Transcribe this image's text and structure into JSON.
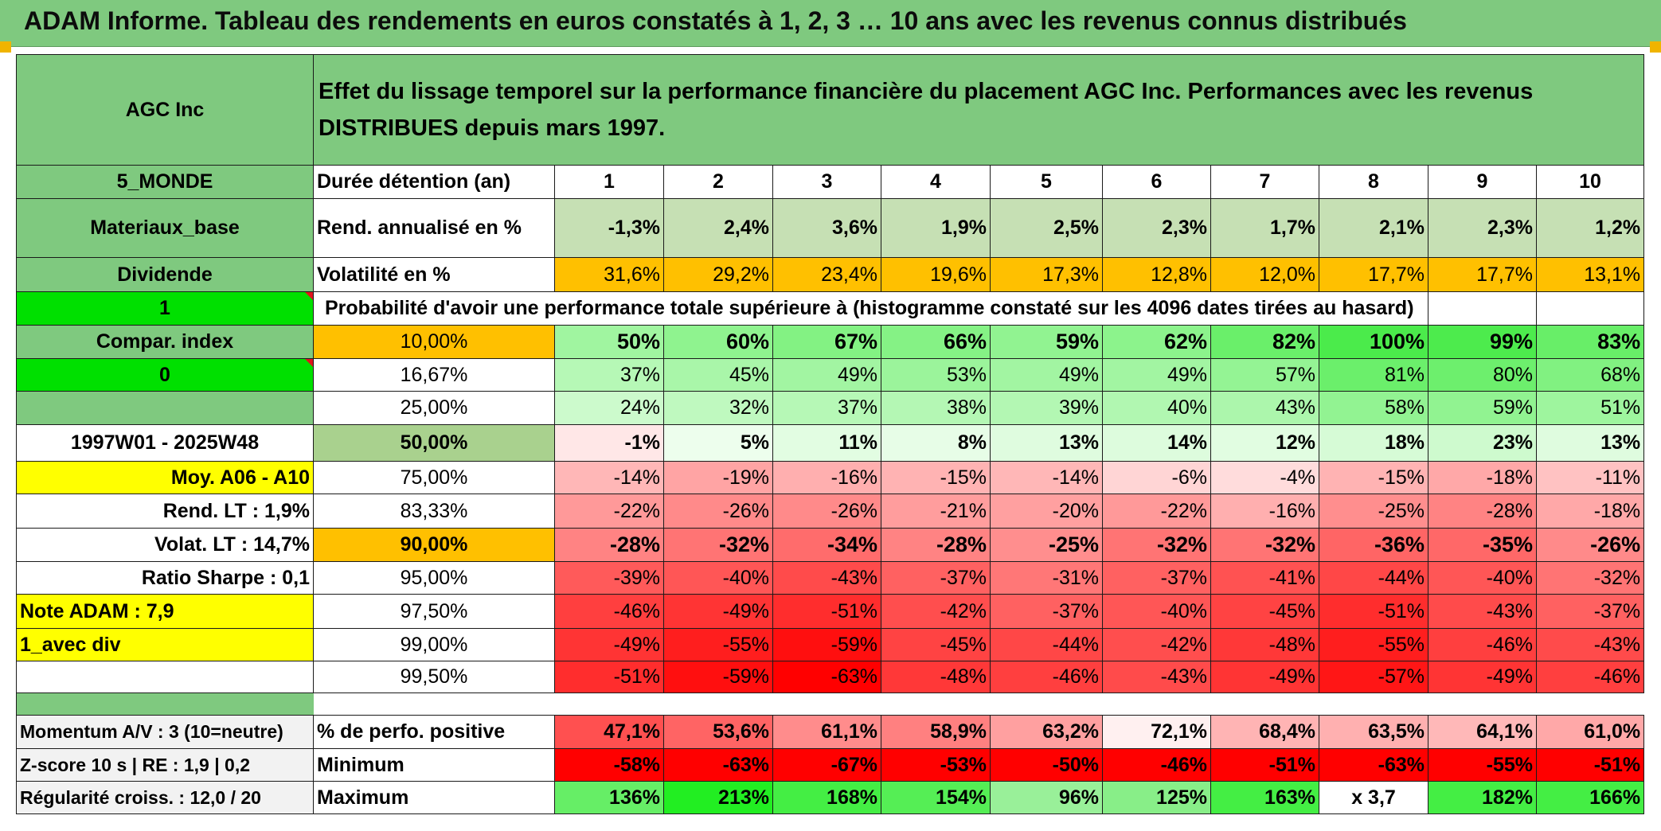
{
  "title": "ADAM Informe. Tableau des rendements en euros constatés à 1, 2, 3 … 10 ans avec les revenus connus distribués",
  "header": {
    "company": "AGC Inc",
    "description": "Effet du lissage temporel sur la performance financière du placement AGC Inc. Performances avec les revenus DISTRIBUES depuis mars 1997."
  },
  "left": {
    "region": "5_MONDE",
    "sector": "Materiaux_base",
    "dividend": "Dividende",
    "flag1": "1",
    "compar_index": "Compar. index",
    "flag0": "0",
    "period": "1997W01 - 2025W48",
    "moy": "Moy. A06 - A10",
    "rend_lt": "Rend. LT :   1,9%",
    "volat_lt": "Volat. LT :   14,7%",
    "sharpe": "Ratio Sharpe :   0,1",
    "note": "Note ADAM : 7,9",
    "avec_div": "1_avec div",
    "momentum": "Momentum A/V : 3 (10=neutre)",
    "zscore": "Z-score 10 s | RE : 1,9 | 0,2",
    "regularite": "Régularité croiss. : 12,0 / 20"
  },
  "rows": {
    "duree_label": "Durée détention (an)",
    "years": [
      "1",
      "2",
      "3",
      "4",
      "5",
      "6",
      "7",
      "8",
      "9",
      "10"
    ],
    "rend_label": "Rend. annualisé en %",
    "rend": [
      "-1,3%",
      "2,4%",
      "3,6%",
      "1,9%",
      "2,5%",
      "2,3%",
      "1,7%",
      "2,1%",
      "2,3%",
      "1,2%"
    ],
    "vol_label": "Volatilité en %",
    "vol": [
      "31,6%",
      "29,2%",
      "23,4%",
      "19,6%",
      "17,3%",
      "12,8%",
      "12,0%",
      "17,7%",
      "17,7%",
      "13,1%"
    ],
    "prob_label": "Probabilité d'avoir une performance totale supérieure à (histogramme constaté sur les 4096 dates tirées au hasard)"
  },
  "quantiles": [
    {
      "q": "10,00%",
      "v": [
        "50%",
        "60%",
        "67%",
        "66%",
        "59%",
        "62%",
        "82%",
        "100%",
        "99%",
        "83%"
      ]
    },
    {
      "q": "16,67%",
      "v": [
        "37%",
        "45%",
        "49%",
        "53%",
        "49%",
        "49%",
        "57%",
        "81%",
        "80%",
        "68%"
      ]
    },
    {
      "q": "25,00%",
      "v": [
        "24%",
        "32%",
        "37%",
        "38%",
        "39%",
        "40%",
        "43%",
        "58%",
        "59%",
        "51%"
      ]
    },
    {
      "q": "50,00%",
      "v": [
        "-1%",
        "5%",
        "11%",
        "8%",
        "13%",
        "14%",
        "12%",
        "18%",
        "23%",
        "13%"
      ]
    },
    {
      "q": "75,00%",
      "v": [
        "-14%",
        "-19%",
        "-16%",
        "-15%",
        "-14%",
        "-6%",
        "-4%",
        "-15%",
        "-18%",
        "-11%"
      ]
    },
    {
      "q": "83,33%",
      "v": [
        "-22%",
        "-26%",
        "-26%",
        "-21%",
        "-20%",
        "-22%",
        "-16%",
        "-25%",
        "-28%",
        "-18%"
      ]
    },
    {
      "q": "90,00%",
      "v": [
        "-28%",
        "-32%",
        "-34%",
        "-28%",
        "-25%",
        "-32%",
        "-32%",
        "-36%",
        "-35%",
        "-26%"
      ]
    },
    {
      "q": "95,00%",
      "v": [
        "-39%",
        "-40%",
        "-43%",
        "-37%",
        "-31%",
        "-37%",
        "-41%",
        "-44%",
        "-40%",
        "-32%"
      ]
    },
    {
      "q": "97,50%",
      "v": [
        "-46%",
        "-49%",
        "-51%",
        "-42%",
        "-37%",
        "-40%",
        "-45%",
        "-51%",
        "-43%",
        "-37%"
      ]
    },
    {
      "q": "99,00%",
      "v": [
        "-49%",
        "-55%",
        "-59%",
        "-45%",
        "-44%",
        "-42%",
        "-48%",
        "-55%",
        "-46%",
        "-43%"
      ]
    },
    {
      "q": "99,50%",
      "v": [
        "-51%",
        "-59%",
        "-63%",
        "-48%",
        "-46%",
        "-43%",
        "-49%",
        "-57%",
        "-49%",
        "-46%"
      ]
    }
  ],
  "stats": {
    "pos_label": "% de perfo. positive",
    "pos": [
      "47,1%",
      "53,6%",
      "61,1%",
      "58,9%",
      "63,2%",
      "72,1%",
      "68,4%",
      "63,5%",
      "64,1%",
      "61,0%"
    ],
    "min_label": "Minimum",
    "min": [
      "-58%",
      "-63%",
      "-67%",
      "-53%",
      "-50%",
      "-46%",
      "-51%",
      "-63%",
      "-55%",
      "-51%"
    ],
    "max_label": "Maximum",
    "max": [
      "136%",
      "213%",
      "168%",
      "154%",
      "96%",
      "125%",
      "163%",
      "x 3,7",
      "182%",
      "166%"
    ]
  },
  "colors": {
    "header_green": "#7fc97f",
    "rend_green": "#c6e0b4",
    "orange": "#ffc000",
    "yellow": "#ffff00",
    "bright_green": "#00e000",
    "red": "#ff0000"
  }
}
